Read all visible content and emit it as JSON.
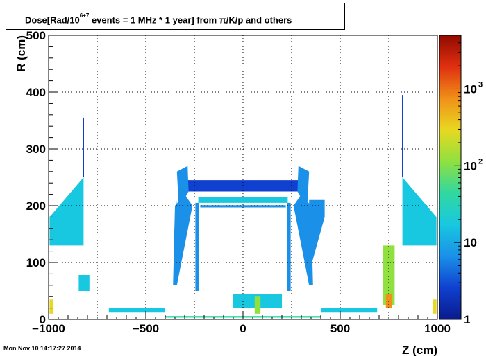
{
  "title": {
    "prefix": "Dose[Rad/10",
    "exponent": "6+7",
    "suffix": " events = 1 MHz * 1 year] from π/K/p and others"
  },
  "datestamp": "Mon Nov 10 14:17:27 2014",
  "colors": {
    "palette": [
      "#0a1a8c",
      "#1040d0",
      "#1a90e8",
      "#18c8e0",
      "#30d8a0",
      "#90e040",
      "#e8d820",
      "#f09018",
      "#e03010",
      "#900a00"
    ],
    "axis": "#000000",
    "grid": "#000000"
  },
  "chart_data": {
    "type": "heatmap",
    "title": "Dose[Rad/10^6+7 events = 1 MHz * 1 year] from π/K/p and others",
    "xlabel": "Z (cm)",
    "ylabel": "R (cm)",
    "xlim": [
      -1000,
      1000
    ],
    "ylim": [
      0,
      500
    ],
    "x_ticks": [
      {
        "value": -1000,
        "label": "−1000"
      },
      {
        "value": -500,
        "label": "−500"
      },
      {
        "value": 0,
        "label": "0"
      },
      {
        "value": 500,
        "label": "500"
      },
      {
        "value": 1000,
        "label": "1000"
      }
    ],
    "y_ticks": [
      {
        "value": 0,
        "label": "0"
      },
      {
        "value": 100,
        "label": "100"
      },
      {
        "value": 200,
        "label": "200"
      },
      {
        "value": 300,
        "label": "300"
      },
      {
        "value": 400,
        "label": "400"
      },
      {
        "value": 500,
        "label": "500"
      }
    ],
    "grid": true,
    "colorbar": {
      "scale": "log",
      "range": [
        1,
        5000
      ],
      "ticks": [
        {
          "value": 1,
          "base": "1",
          "exp": ""
        },
        {
          "value": 10,
          "base": "10",
          "exp": ""
        },
        {
          "value": 100,
          "base": "10",
          "exp": "2"
        },
        {
          "value": 1000,
          "base": "10",
          "exp": "3"
        }
      ]
    },
    "regions": [
      {
        "name": "left-endcap-wedge",
        "poly": [
          [
            -995,
            130
          ],
          [
            -820,
            130
          ],
          [
            -820,
            250
          ],
          [
            -995,
            180
          ]
        ],
        "level": 0.32
      },
      {
        "name": "right-endcap-wedge",
        "poly": [
          [
            820,
            130
          ],
          [
            995,
            130
          ],
          [
            995,
            180
          ],
          [
            820,
            250
          ]
        ],
        "level": 0.32
      },
      {
        "name": "left-spike",
        "poly": [
          [
            -822,
            250
          ],
          [
            -818,
            250
          ],
          [
            -818,
            355
          ],
          [
            -822,
            355
          ]
        ],
        "level": 0.1
      },
      {
        "name": "right-spike",
        "poly": [
          [
            818,
            250
          ],
          [
            822,
            250
          ],
          [
            822,
            395
          ],
          [
            818,
            395
          ]
        ],
        "level": 0.1
      },
      {
        "name": "top-band",
        "poly": [
          [
            -280,
            225
          ],
          [
            280,
            225
          ],
          [
            300,
            245
          ],
          [
            -300,
            245
          ]
        ],
        "level": 0.12
      },
      {
        "name": "top-left-corner",
        "poly": [
          [
            -330,
            195
          ],
          [
            -280,
            225
          ],
          [
            -285,
            270
          ],
          [
            -340,
            260
          ]
        ],
        "level": 0.18
      },
      {
        "name": "top-right-corner",
        "poly": [
          [
            280,
            225
          ],
          [
            330,
            195
          ],
          [
            340,
            260
          ],
          [
            285,
            270
          ]
        ],
        "level": 0.18
      },
      {
        "name": "inner-frame-top",
        "poly": [
          [
            -230,
            205
          ],
          [
            230,
            205
          ],
          [
            230,
            215
          ],
          [
            -230,
            215
          ]
        ],
        "level": 0.38
      },
      {
        "name": "inner-frame-top2",
        "poly": [
          [
            -220,
            197
          ],
          [
            220,
            197
          ],
          [
            220,
            201
          ],
          [
            -220,
            201
          ]
        ],
        "level": 0.25
      },
      {
        "name": "left-column",
        "poly": [
          [
            -245,
            50
          ],
          [
            -225,
            50
          ],
          [
            -225,
            205
          ],
          [
            -245,
            205
          ]
        ],
        "level": 0.25
      },
      {
        "name": "right-column",
        "poly": [
          [
            225,
            50
          ],
          [
            245,
            50
          ],
          [
            245,
            205
          ],
          [
            225,
            205
          ]
        ],
        "level": 0.25
      },
      {
        "name": "left-side-wedge",
        "poly": [
          [
            -360,
            60
          ],
          [
            -340,
            60
          ],
          [
            -260,
            200
          ],
          [
            -300,
            220
          ],
          [
            -350,
            200
          ]
        ],
        "level": 0.22
      },
      {
        "name": "right-side-wedge",
        "poly": [
          [
            340,
            60
          ],
          [
            360,
            60
          ],
          [
            350,
            200
          ],
          [
            300,
            220
          ],
          [
            260,
            200
          ]
        ],
        "level": 0.22
      },
      {
        "name": "left-far-wedge",
        "poly": [
          [
            -355,
            100
          ],
          [
            -340,
            100
          ],
          [
            -340,
            210
          ],
          [
            -355,
            150
          ]
        ],
        "level": 0.2
      },
      {
        "name": "right-far-wedge",
        "poly": [
          [
            340,
            100
          ],
          [
            355,
            100
          ],
          [
            420,
            180
          ],
          [
            420,
            210
          ],
          [
            340,
            210
          ]
        ],
        "level": 0.2
      },
      {
        "name": "left-small-block",
        "poly": [
          [
            -845,
            50
          ],
          [
            -790,
            50
          ],
          [
            -790,
            78
          ],
          [
            -845,
            78
          ]
        ],
        "level": 0.32
      },
      {
        "name": "right-yellow-block",
        "poly": [
          [
            720,
            25
          ],
          [
            780,
            25
          ],
          [
            780,
            130
          ],
          [
            720,
            130
          ]
        ],
        "level": 0.55
      },
      {
        "name": "right-orange-core",
        "poly": [
          [
            735,
            20
          ],
          [
            765,
            20
          ],
          [
            765,
            45
          ],
          [
            735,
            45
          ]
        ],
        "level": 0.75
      },
      {
        "name": "left-corner-hot",
        "poly": [
          [
            -995,
            10
          ],
          [
            -975,
            10
          ],
          [
            -975,
            35
          ],
          [
            -995,
            35
          ]
        ],
        "level": 0.72
      },
      {
        "name": "right-corner-hot",
        "poly": [
          [
            975,
            10
          ],
          [
            995,
            10
          ],
          [
            995,
            35
          ],
          [
            975,
            35
          ]
        ],
        "level": 0.72
      },
      {
        "name": "left-floor-strip",
        "poly": [
          [
            -690,
            12
          ],
          [
            -400,
            12
          ],
          [
            -400,
            20
          ],
          [
            -690,
            20
          ]
        ],
        "level": 0.35
      },
      {
        "name": "right-floor-strip",
        "poly": [
          [
            400,
            12
          ],
          [
            690,
            12
          ],
          [
            690,
            20
          ],
          [
            400,
            20
          ]
        ],
        "level": 0.35
      },
      {
        "name": "center-beampipe-box",
        "poly": [
          [
            -50,
            20
          ],
          [
            200,
            20
          ],
          [
            200,
            45
          ],
          [
            -50,
            45
          ]
        ],
        "level": 0.32
      },
      {
        "name": "center-yellow",
        "poly": [
          [
            60,
            10
          ],
          [
            90,
            10
          ],
          [
            90,
            40
          ],
          [
            60,
            40
          ]
        ],
        "level": 0.6
      },
      {
        "name": "center-floor-line",
        "poly": [
          [
            -400,
            3
          ],
          [
            400,
            3
          ],
          [
            400,
            6
          ],
          [
            -400,
            6
          ]
        ],
        "level": 0.5
      }
    ]
  }
}
